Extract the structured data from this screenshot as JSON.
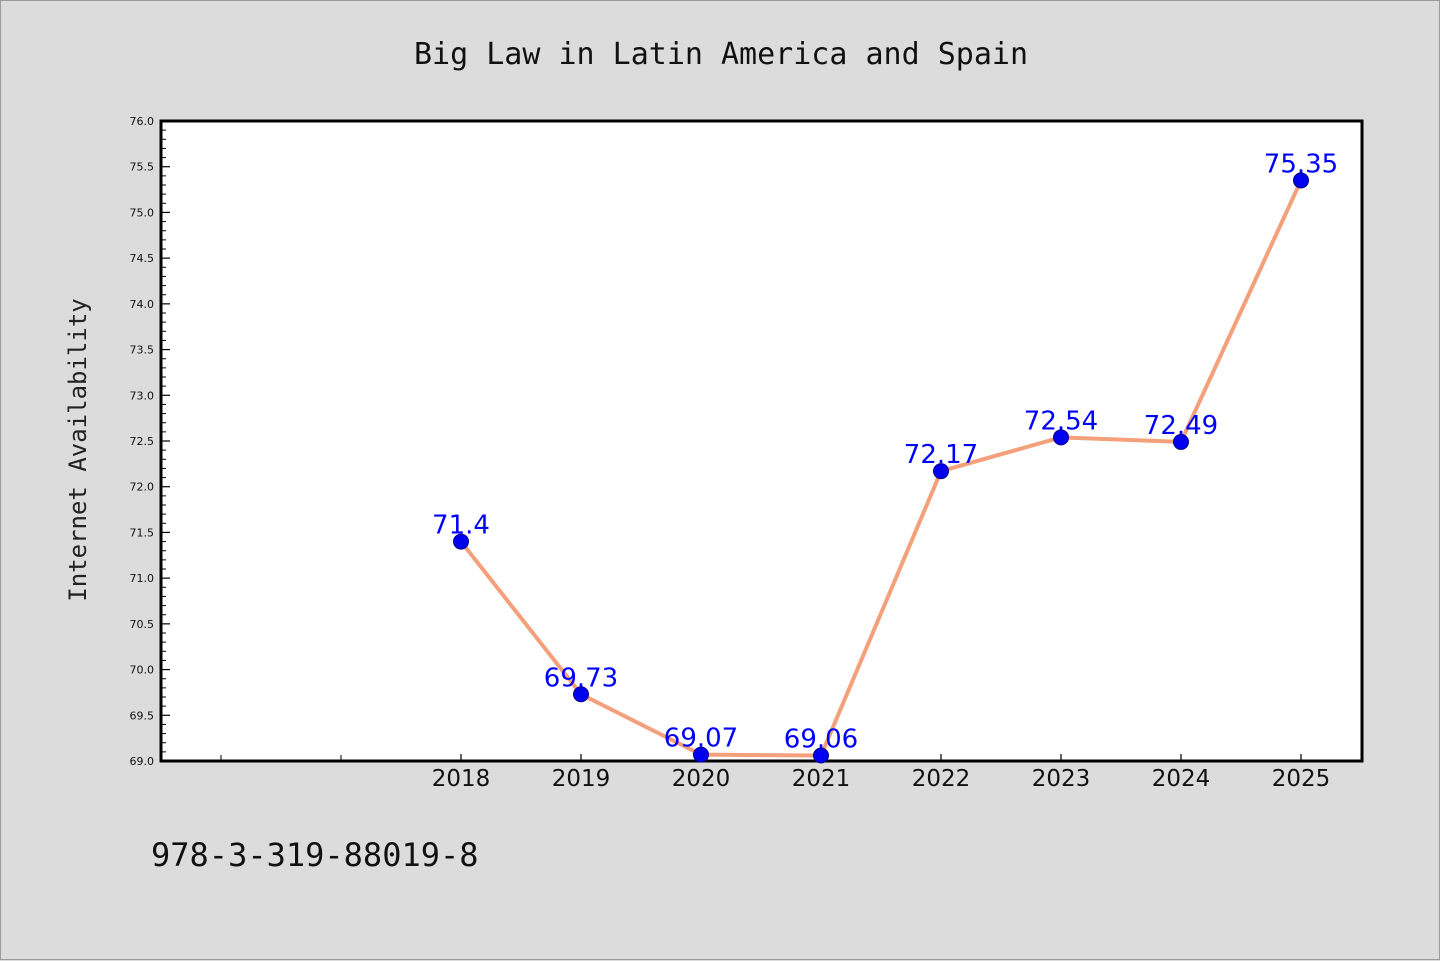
{
  "chart_data": {
    "type": "line",
    "title": "Big Law in Latin America and Spain",
    "xlabel": "",
    "ylabel": "Internet Availability",
    "categories": [
      "2018",
      "2019",
      "2020",
      "2021",
      "2022",
      "2023",
      "2024",
      "2025"
    ],
    "series": [
      {
        "values": [
          71.4,
          69.73,
          69.07,
          69.06,
          72.17,
          72.54,
          72.49,
          75.35
        ],
        "data_labels": [
          "71.4",
          "69.73",
          "69.07",
          "69.06",
          "72.17",
          "72.54",
          "72.49",
          "75.35"
        ],
        "line_color": "#f4a07a",
        "marker_color": "#0000ee",
        "label_color": "#0000ff"
      }
    ],
    "ylim": [
      69.0,
      76.0
    ],
    "y_ticks": [
      "69.0",
      "69.5",
      "70.0",
      "70.5",
      "71.0",
      "71.5",
      "72.0",
      "72.5",
      "73.0",
      "73.5",
      "74.0",
      "74.5",
      "75.0",
      "75.5",
      "76.0"
    ],
    "grid": false,
    "legend": "none"
  },
  "footer": {
    "isbn": "978-3-319-88019-8"
  },
  "colors": {
    "background": "#dcdcdc",
    "plot_background": "#ffffff",
    "axis": "#000000"
  }
}
